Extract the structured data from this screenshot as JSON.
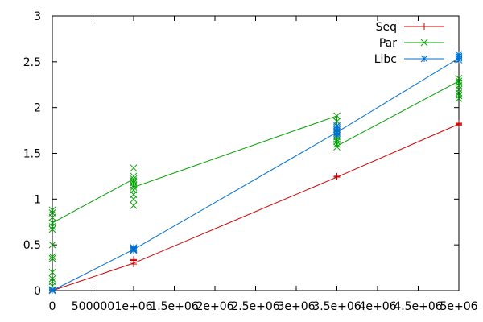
{
  "chart_data": {
    "type": "line",
    "title": "",
    "xlabel": "",
    "ylabel": "",
    "xlim": [
      0,
      5000000
    ],
    "ylim": [
      0,
      3
    ],
    "grid": false,
    "legend_position": "top-right",
    "x_ticks": [
      {
        "value": 0,
        "label": "0"
      },
      {
        "value": 500000,
        "label": "500000"
      },
      {
        "value": 1000000,
        "label": "1e+06"
      },
      {
        "value": 1500000,
        "label": "1.5e+06"
      },
      {
        "value": 2000000,
        "label": "2e+06"
      },
      {
        "value": 2500000,
        "label": "2.5e+06"
      },
      {
        "value": 3000000,
        "label": "3e+06"
      },
      {
        "value": 3500000,
        "label": "3.5e+06"
      },
      {
        "value": 4000000,
        "label": "4e+06"
      },
      {
        "value": 4500000,
        "label": "4.5e+06"
      },
      {
        "value": 5000000,
        "label": "5e+06"
      }
    ],
    "y_ticks": [
      {
        "value": 0,
        "label": "0"
      },
      {
        "value": 0.5,
        "label": "0.5"
      },
      {
        "value": 1,
        "label": "1"
      },
      {
        "value": 1.5,
        "label": "1.5"
      },
      {
        "value": 2,
        "label": "2"
      },
      {
        "value": 2.5,
        "label": "2.5"
      },
      {
        "value": 3,
        "label": "3"
      }
    ],
    "series": [
      {
        "name": "Seq",
        "color": "#cc0000",
        "marker": "plus",
        "line": [
          [
            0,
            0
          ],
          [
            1000000,
            0.3
          ],
          [
            3500000,
            1.24
          ],
          [
            5000000,
            1.82
          ]
        ],
        "points": [
          [
            0,
            0
          ],
          [
            0,
            0.01
          ],
          [
            1000000,
            0.29
          ],
          [
            1000000,
            0.31
          ],
          [
            1000000,
            0.33
          ],
          [
            1000000,
            0.34
          ],
          [
            3500000,
            1.24
          ],
          [
            3500000,
            1.25
          ],
          [
            5000000,
            1.81
          ],
          [
            5000000,
            1.82
          ],
          [
            5000000,
            1.83
          ]
        ]
      },
      {
        "name": "Par",
        "color": "#00a000",
        "marker": "cross",
        "line": [
          [
            0,
            0.74
          ],
          [
            1000000,
            1.22
          ],
          [
            1000000,
            1.13
          ],
          [
            3500000,
            1.91
          ],
          [
            3500000,
            1.58
          ],
          [
            5000000,
            2.29
          ]
        ],
        "points": [
          [
            0,
            0.05
          ],
          [
            0,
            0.1
          ],
          [
            0,
            0.13
          ],
          [
            0,
            0.2
          ],
          [
            0,
            0.35
          ],
          [
            0,
            0.37
          ],
          [
            0,
            0.5
          ],
          [
            0,
            0.67
          ],
          [
            0,
            0.7
          ],
          [
            0,
            0.74
          ],
          [
            0,
            0.8
          ],
          [
            0,
            0.85
          ],
          [
            0,
            0.88
          ],
          [
            1000000,
            0.93
          ],
          [
            1000000,
            1.0
          ],
          [
            1000000,
            1.05
          ],
          [
            1000000,
            1.1
          ],
          [
            1000000,
            1.13
          ],
          [
            1000000,
            1.15
          ],
          [
            1000000,
            1.18
          ],
          [
            1000000,
            1.2
          ],
          [
            1000000,
            1.22
          ],
          [
            1000000,
            1.25
          ],
          [
            1000000,
            1.34
          ],
          [
            3500000,
            1.57
          ],
          [
            3500000,
            1.6
          ],
          [
            3500000,
            1.63
          ],
          [
            3500000,
            1.65
          ],
          [
            3500000,
            1.68
          ],
          [
            3500000,
            1.7
          ],
          [
            3500000,
            1.73
          ],
          [
            3500000,
            1.76
          ],
          [
            3500000,
            1.8
          ],
          [
            3500000,
            1.85
          ],
          [
            3500000,
            1.91
          ],
          [
            5000000,
            2.1
          ],
          [
            5000000,
            2.13
          ],
          [
            5000000,
            2.16
          ],
          [
            5000000,
            2.2
          ],
          [
            5000000,
            2.24
          ],
          [
            5000000,
            2.27
          ],
          [
            5000000,
            2.29
          ],
          [
            5000000,
            2.32
          ]
        ]
      },
      {
        "name": "Libc",
        "color": "#0070d0",
        "marker": "star",
        "line": [
          [
            0,
            0
          ],
          [
            1000000,
            0.45
          ],
          [
            3500000,
            1.73
          ],
          [
            5000000,
            2.54
          ]
        ],
        "points": [
          [
            0,
            0
          ],
          [
            0,
            0.01
          ],
          [
            1000000,
            0.44
          ],
          [
            1000000,
            0.45
          ],
          [
            1000000,
            0.46
          ],
          [
            1000000,
            0.47
          ],
          [
            3500000,
            1.7
          ],
          [
            3500000,
            1.72
          ],
          [
            3500000,
            1.74
          ],
          [
            3500000,
            1.76
          ],
          [
            3500000,
            1.78
          ],
          [
            3500000,
            1.8
          ],
          [
            5000000,
            2.52
          ],
          [
            5000000,
            2.54
          ],
          [
            5000000,
            2.56
          ],
          [
            5000000,
            2.58
          ]
        ]
      }
    ]
  }
}
